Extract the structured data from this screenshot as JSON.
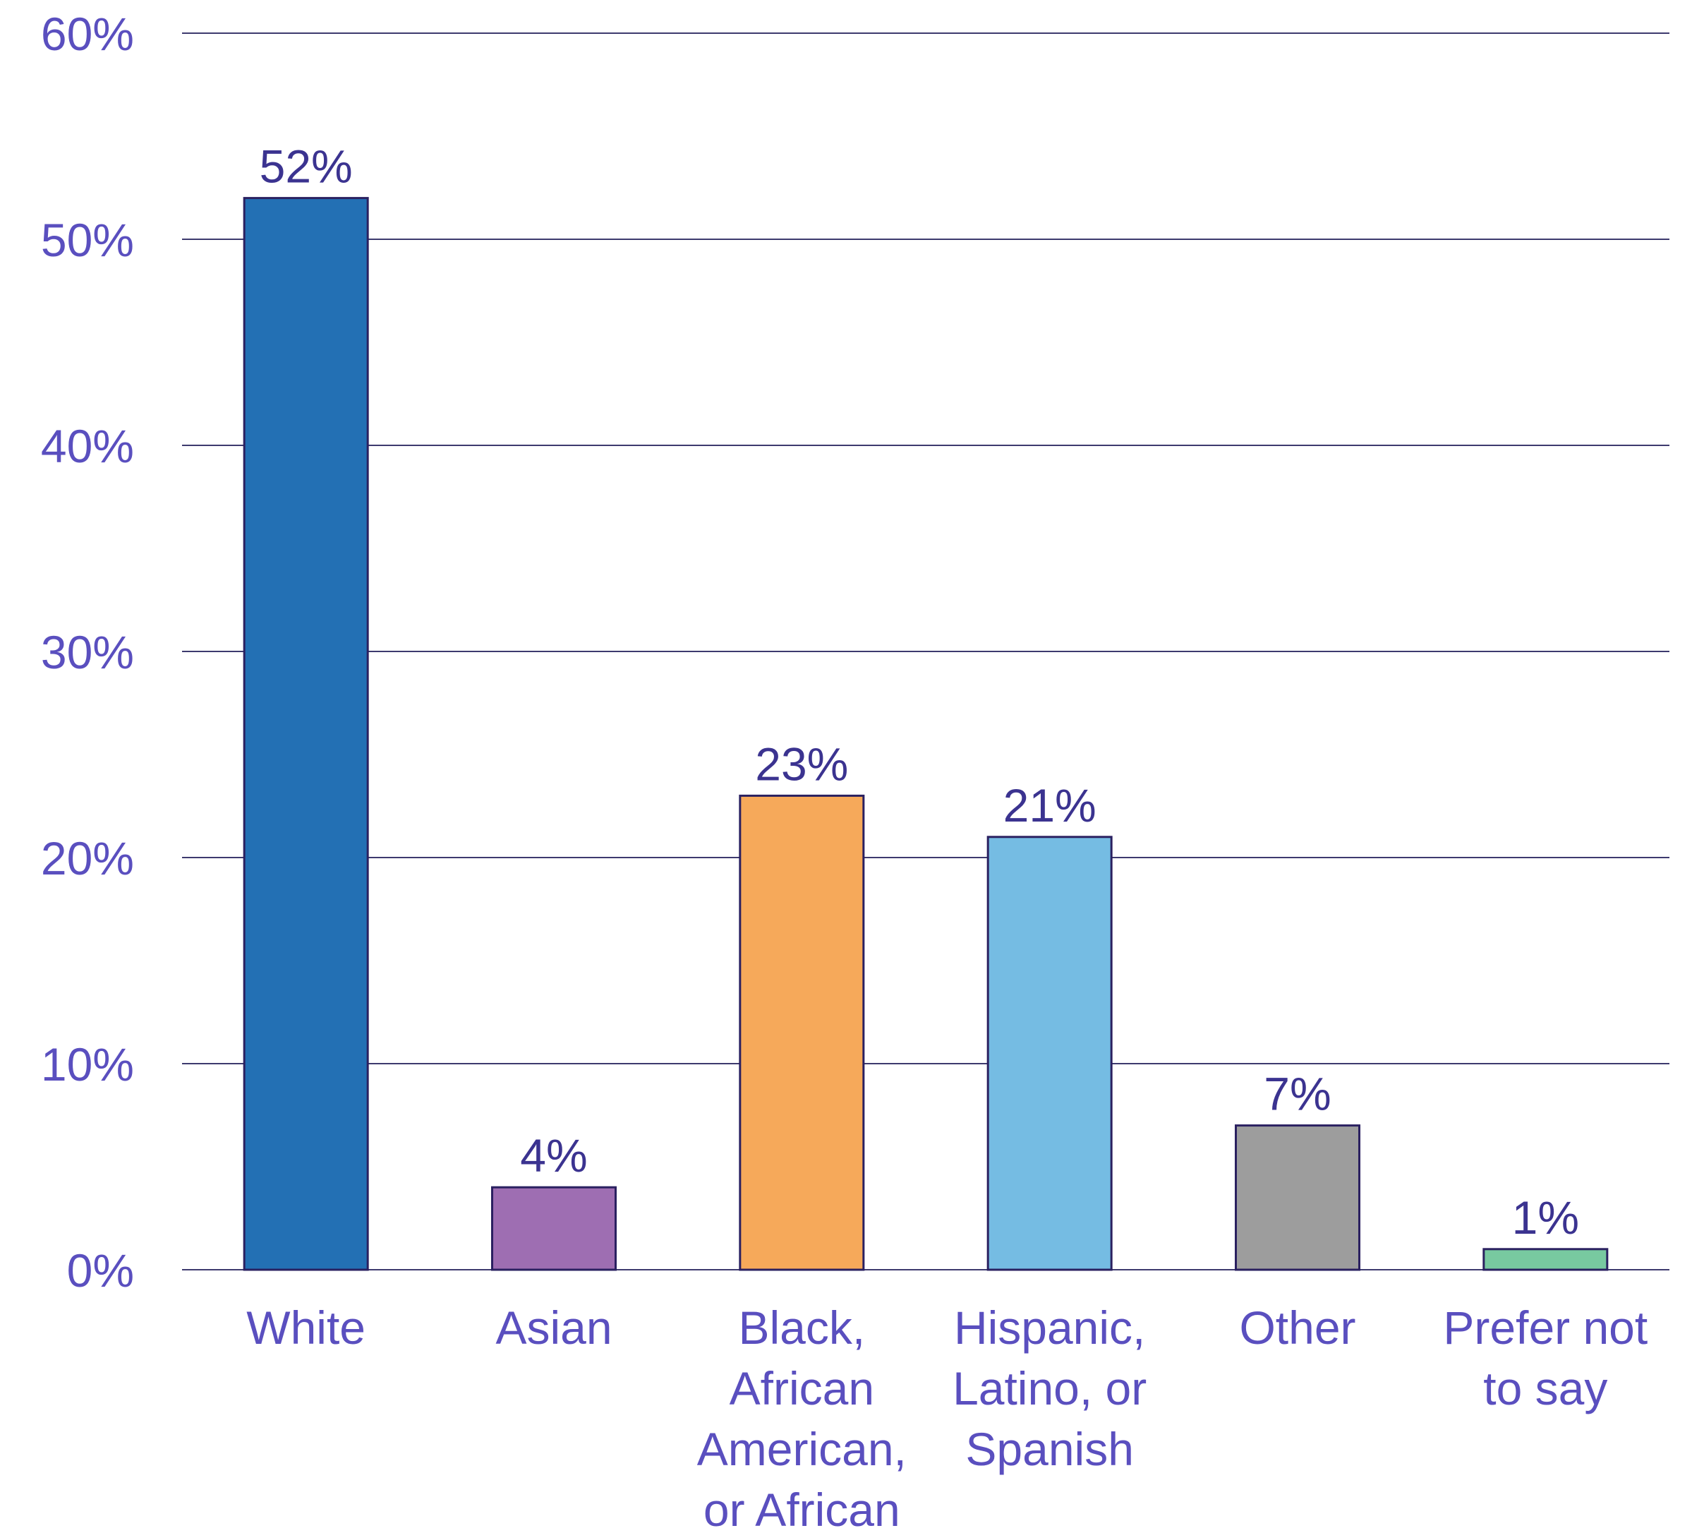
{
  "chart_data": {
    "type": "bar",
    "categories": [
      [
        "White"
      ],
      [
        "Asian"
      ],
      [
        "Black,",
        "African",
        "American,",
        "or African"
      ],
      [
        "Hispanic,",
        "Latino, or",
        "Spanish"
      ],
      [
        "Other"
      ],
      [
        "Prefer not",
        "to say"
      ]
    ],
    "values": [
      52,
      4,
      23,
      21,
      7,
      1
    ],
    "value_labels": [
      "52%",
      "4%",
      "23%",
      "21%",
      "7%",
      "1%"
    ],
    "bar_colors": [
      "#2370b4",
      "#9e6eb2",
      "#f6a95a",
      "#75bce3",
      "#9d9d9d",
      "#78c9a0"
    ],
    "yticks": [
      0,
      10,
      20,
      30,
      40,
      50,
      60
    ],
    "ytick_labels": [
      "0%",
      "10%",
      "20%",
      "30%",
      "40%",
      "50%",
      "60%"
    ],
    "ylim": [
      0,
      60
    ],
    "grid": true,
    "title": "",
    "xlabel": "",
    "ylabel": "",
    "text_color": "#5a4fbf",
    "value_label_color": "#3b3390",
    "bar_outline_color": "#2a2060",
    "gridline_color": "#3d3a6e"
  }
}
